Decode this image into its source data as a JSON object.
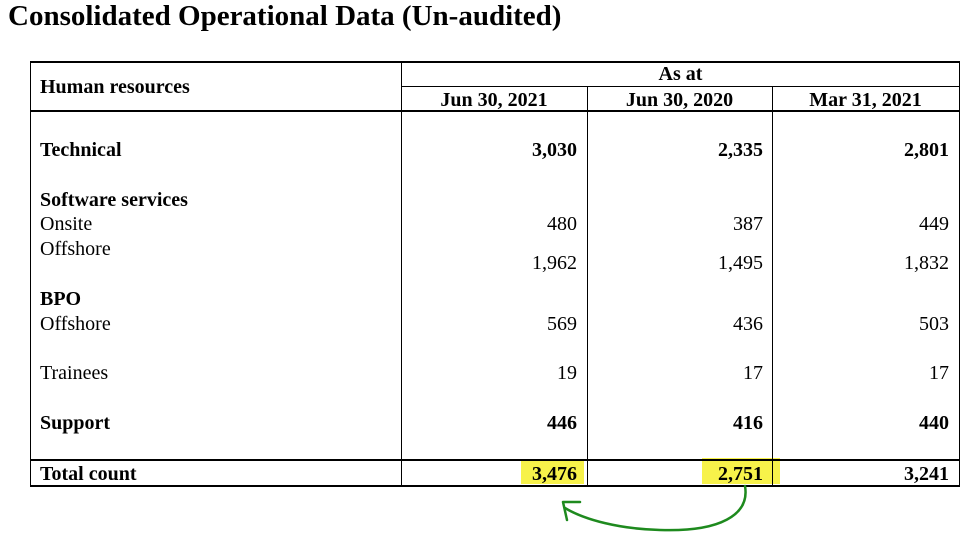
{
  "title": "Consolidated Operational Data (Un-audited)",
  "table": {
    "row_header": "Human resources",
    "group_header": "As at",
    "columns": [
      "Jun 30, 2021",
      "Jun 30, 2020",
      "Mar 31, 2021"
    ],
    "rows": {
      "technical": {
        "label": "Technical",
        "values": [
          "3,030",
          "2,335",
          "2,801"
        ]
      },
      "software_services": {
        "label": "Software services"
      },
      "onsite": {
        "label": "Onsite",
        "values": [
          "480",
          "387",
          "449"
        ]
      },
      "offshore_sw": {
        "label": "Offshore",
        "values": [
          "1,962",
          "1,495",
          "1,832"
        ]
      },
      "bpo": {
        "label": "BPO"
      },
      "offshore_bpo": {
        "label": "Offshore",
        "values": [
          "569",
          "436",
          "503"
        ]
      },
      "trainees": {
        "label": "Trainees",
        "values": [
          "19",
          "17",
          "17"
        ]
      },
      "support": {
        "label": "Support",
        "values": [
          "446",
          "416",
          "440"
        ]
      },
      "total": {
        "label": "Total count",
        "values": [
          "3,476",
          "2,751",
          "3,241"
        ]
      }
    }
  },
  "annotation": {
    "highlight_color": "#f6f02a",
    "arrow_color": "#1e8a1e"
  }
}
